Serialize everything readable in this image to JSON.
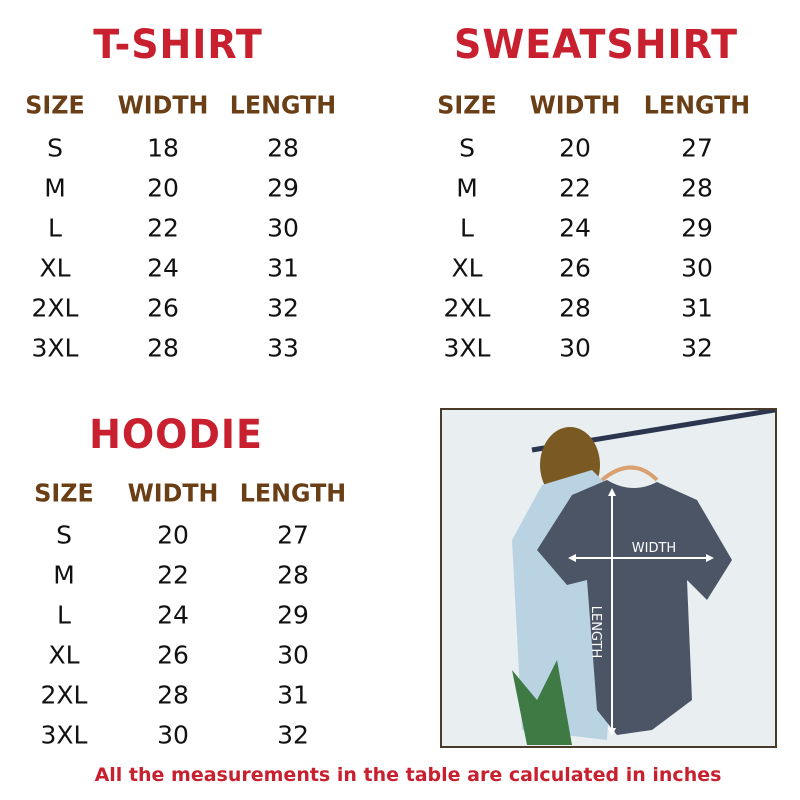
{
  "colors": {
    "title": "#c8202f",
    "header": "#6b3f16",
    "text": "#111111",
    "footer": "#c8202f"
  },
  "tables": [
    {
      "title": "T-SHIRT",
      "headers": [
        "SIZE",
        "WIDTH",
        "LENGTH"
      ],
      "rows": [
        [
          "S",
          "18",
          "28"
        ],
        [
          "M",
          "20",
          "29"
        ],
        [
          "L",
          "22",
          "30"
        ],
        [
          "XL",
          "24",
          "31"
        ],
        [
          "2XL",
          "26",
          "32"
        ],
        [
          "3XL",
          "28",
          "33"
        ]
      ]
    },
    {
      "title": "SWEATSHIRT",
      "headers": [
        "SIZE",
        "WIDTH",
        "LENGTH"
      ],
      "rows": [
        [
          "S",
          "20",
          "27"
        ],
        [
          "M",
          "22",
          "28"
        ],
        [
          "L",
          "24",
          "29"
        ],
        [
          "XL",
          "26",
          "30"
        ],
        [
          "2XL",
          "28",
          "31"
        ],
        [
          "3XL",
          "30",
          "32"
        ]
      ]
    },
    {
      "title": "HOODIE",
      "headers": [
        "SIZE",
        "WIDTH",
        "LENGTH"
      ],
      "rows": [
        [
          "S",
          "20",
          "27"
        ],
        [
          "M",
          "22",
          "28"
        ],
        [
          "L",
          "24",
          "29"
        ],
        [
          "XL",
          "26",
          "30"
        ],
        [
          "2XL",
          "28",
          "31"
        ],
        [
          "3XL",
          "30",
          "32"
        ]
      ]
    }
  ],
  "photo": {
    "width_label": "WIDTH",
    "length_label": "LENGTH"
  },
  "footer": "All the measurements in the table are calculated in inches"
}
